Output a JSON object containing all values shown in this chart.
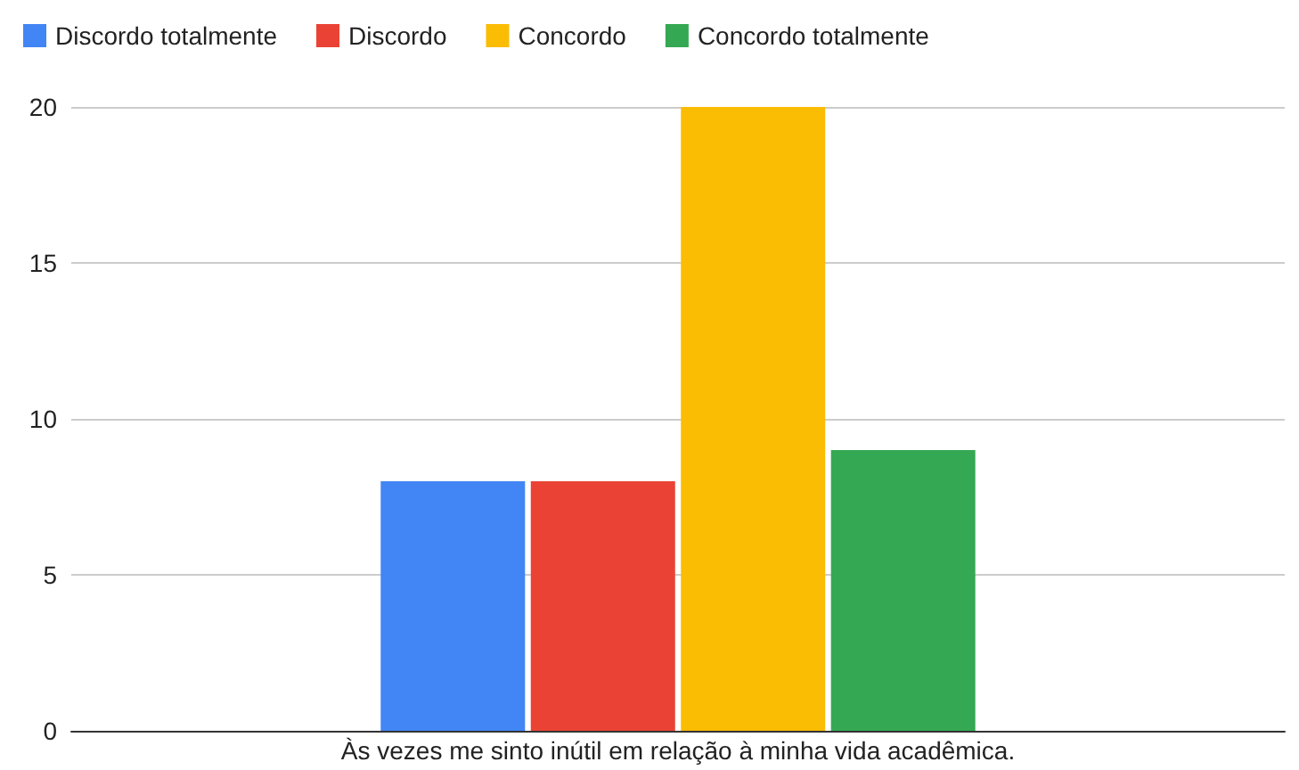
{
  "chart_data": {
    "type": "bar",
    "categories": [
      "Às vezes me sinto inútil em relação à minha vida acadêmica."
    ],
    "series": [
      {
        "name": "Discordo totalmente",
        "color": "#4285f4",
        "values": [
          8
        ]
      },
      {
        "name": "Discordo",
        "color": "#ea4335",
        "values": [
          8
        ]
      },
      {
        "name": "Concordo",
        "color": "#fbbc04",
        "values": [
          20
        ]
      },
      {
        "name": "Concordo totalmente",
        "color": "#34a853",
        "values": [
          9
        ]
      }
    ],
    "ylim": [
      0,
      20
    ],
    "yticks": [
      0,
      5,
      10,
      15,
      20
    ],
    "grid": "y",
    "legend": "top left"
  }
}
